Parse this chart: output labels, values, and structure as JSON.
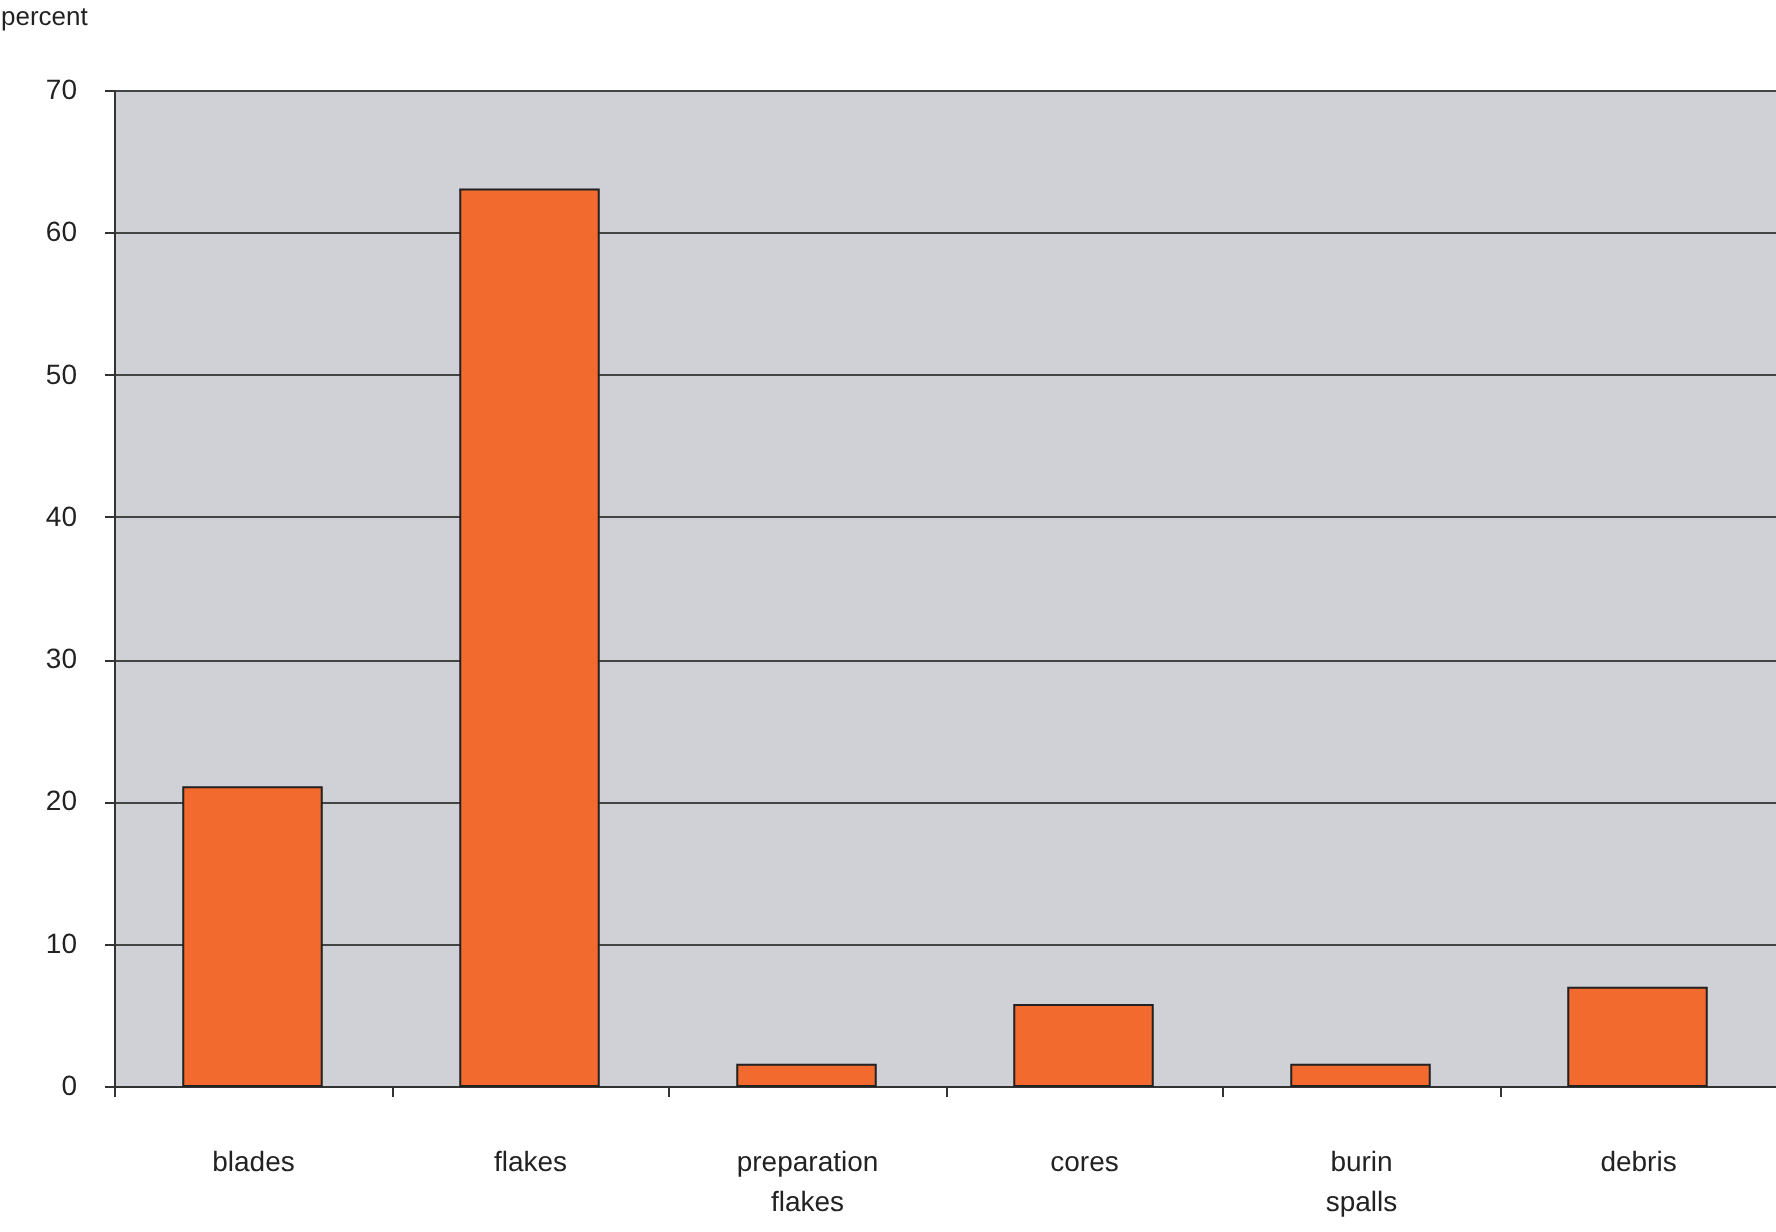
{
  "chart_data": {
    "type": "bar",
    "ylabel": "percent",
    "categories": [
      "blades",
      "flakes",
      "preparation flakes",
      "cores",
      "burin spalls",
      "debris"
    ],
    "values": [
      21,
      63,
      1.5,
      5.7,
      1.5,
      6.9
    ],
    "color": "#f26a2e",
    "ylim": [
      0,
      70
    ],
    "yticks": [
      0,
      10,
      20,
      30,
      40,
      50,
      60,
      70
    ],
    "grid": "y"
  }
}
